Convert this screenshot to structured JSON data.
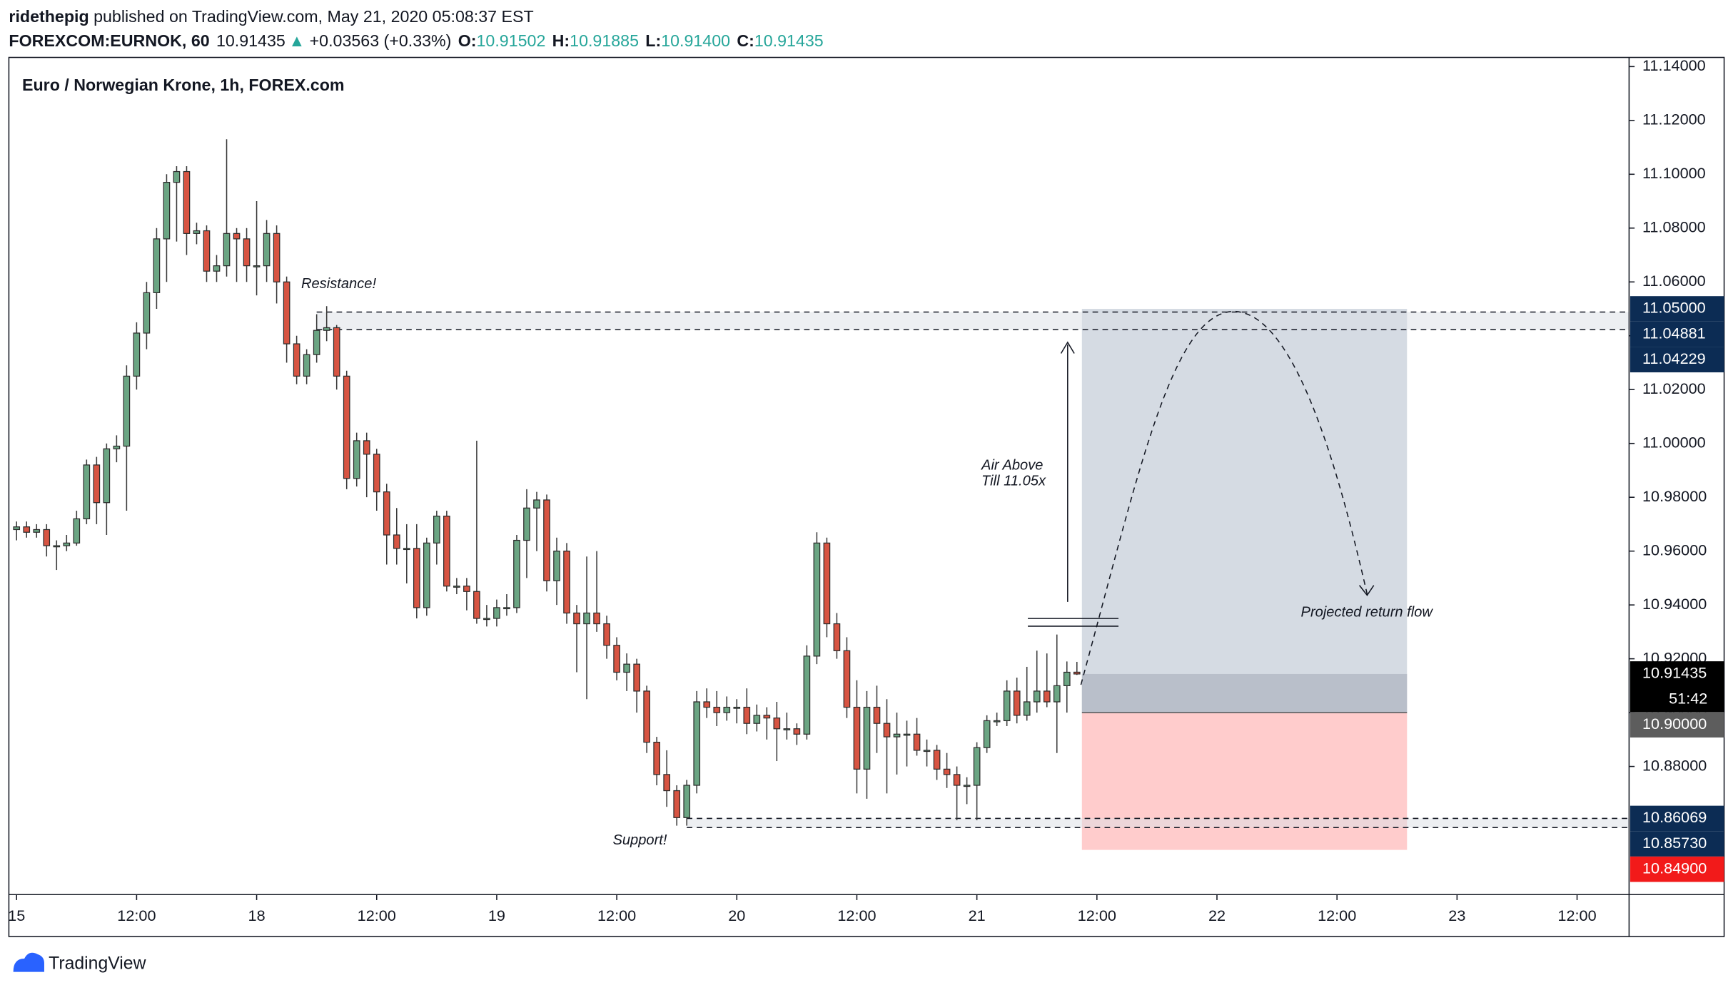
{
  "header": {
    "author": "ridethepig",
    "published": " published on TradingView.com, May 21, 2020 05:08:37 EST",
    "symbol": "FOREXCOM:EURNOK, 60",
    "last": "10.91435",
    "arrow": "▲",
    "change": "+0.03563 (+0.33%)",
    "o_label": "O:",
    "o": "10.91502",
    "h_label": "H:",
    "h": "10.91885",
    "l_label": "L:",
    "l": "10.91400",
    "c_label": "C:",
    "c": "10.91435"
  },
  "chart_data": {
    "type": "candlestick",
    "title": "Euro / Norwegian Krone, 1h, FOREX.com",
    "up_color": "#6ba583",
    "down_color": "#d75442",
    "grid": false,
    "candles": [
      [
        10.968,
        10.971,
        10.964,
        10.969
      ],
      [
        10.969,
        10.971,
        10.965,
        10.967
      ],
      [
        10.967,
        10.97,
        10.965,
        10.968
      ],
      [
        10.968,
        10.97,
        10.958,
        10.962
      ],
      [
        10.962,
        10.964,
        10.953,
        10.962
      ],
      [
        10.962,
        10.966,
        10.96,
        10.963
      ],
      [
        10.963,
        10.975,
        10.962,
        10.972
      ],
      [
        10.972,
        10.994,
        10.97,
        10.992
      ],
      [
        10.992,
        10.995,
        10.97,
        10.978
      ],
      [
        10.978,
        11.0,
        10.966,
        10.998
      ],
      [
        10.998,
        11.003,
        10.993,
        10.999
      ],
      [
        10.999,
        11.029,
        10.975,
        11.025
      ],
      [
        11.025,
        11.045,
        11.02,
        11.041
      ],
      [
        11.041,
        11.06,
        11.035,
        11.056
      ],
      [
        11.056,
        11.08,
        11.05,
        11.076
      ],
      [
        11.076,
        11.1,
        11.06,
        11.097
      ],
      [
        11.097,
        11.103,
        11.075,
        11.101
      ],
      [
        11.101,
        11.103,
        11.07,
        11.078
      ],
      [
        11.078,
        11.082,
        11.074,
        11.079
      ],
      [
        11.079,
        11.081,
        11.06,
        11.064
      ],
      [
        11.064,
        11.07,
        11.06,
        11.066
      ],
      [
        11.066,
        11.113,
        11.062,
        11.078
      ],
      [
        11.078,
        11.08,
        11.06,
        11.076
      ],
      [
        11.076,
        11.08,
        11.06,
        11.066
      ],
      [
        11.066,
        11.09,
        11.055,
        11.066
      ],
      [
        11.066,
        11.083,
        11.06,
        11.078
      ],
      [
        11.078,
        11.081,
        11.052,
        11.06
      ],
      [
        11.06,
        11.062,
        11.03,
        11.037
      ],
      [
        11.037,
        11.04,
        11.022,
        11.025
      ],
      [
        11.025,
        11.035,
        11.022,
        11.033
      ],
      [
        11.033,
        11.048,
        11.03,
        11.042
      ],
      [
        11.042,
        11.051,
        11.038,
        11.043
      ],
      [
        11.043,
        11.044,
        11.02,
        11.025
      ],
      [
        11.025,
        11.027,
        10.983,
        10.987
      ],
      [
        10.987,
        11.004,
        10.984,
        11.001
      ],
      [
        11.001,
        11.004,
        10.98,
        10.996
      ],
      [
        10.996,
        10.998,
        10.975,
        10.982
      ],
      [
        10.982,
        10.985,
        10.955,
        10.966
      ],
      [
        10.966,
        10.976,
        10.955,
        10.961
      ],
      [
        10.961,
        10.97,
        10.948,
        10.961
      ],
      [
        10.961,
        10.97,
        10.935,
        10.939
      ],
      [
        10.939,
        10.965,
        10.936,
        10.963
      ],
      [
        10.963,
        10.975,
        10.955,
        10.973
      ],
      [
        10.973,
        10.975,
        10.945,
        10.947
      ],
      [
        10.947,
        10.95,
        10.944,
        10.947
      ],
      [
        10.947,
        10.95,
        10.938,
        10.945
      ],
      [
        10.945,
        11.001,
        10.933,
        10.935
      ],
      [
        10.935,
        10.94,
        10.932,
        10.935
      ],
      [
        10.935,
        10.942,
        10.932,
        10.939
      ],
      [
        10.939,
        10.944,
        10.936,
        10.939
      ],
      [
        10.939,
        10.966,
        10.937,
        10.964
      ],
      [
        10.964,
        10.983,
        10.95,
        10.976
      ],
      [
        10.976,
        10.982,
        10.96,
        10.979
      ],
      [
        10.979,
        10.981,
        10.945,
        10.949
      ],
      [
        10.949,
        10.965,
        10.94,
        10.96
      ],
      [
        10.96,
        10.963,
        10.933,
        10.937
      ],
      [
        10.937,
        10.94,
        10.915,
        10.933
      ],
      [
        10.933,
        10.958,
        10.905,
        10.937
      ],
      [
        10.937,
        10.96,
        10.93,
        10.933
      ],
      [
        10.933,
        10.936,
        10.92,
        10.925
      ],
      [
        10.925,
        10.928,
        10.912,
        10.915
      ],
      [
        10.915,
        10.922,
        10.908,
        10.918
      ],
      [
        10.918,
        10.92,
        10.9,
        10.908
      ],
      [
        10.908,
        10.91,
        10.885,
        10.889
      ],
      [
        10.889,
        10.891,
        10.873,
        10.877
      ],
      [
        10.877,
        10.886,
        10.865,
        10.871
      ],
      [
        10.871,
        10.873,
        10.858,
        10.861
      ],
      [
        10.861,
        10.875,
        10.858,
        10.873
      ],
      [
        10.873,
        10.908,
        10.87,
        10.904
      ],
      [
        10.904,
        10.909,
        10.898,
        10.902
      ],
      [
        10.902,
        10.908,
        10.895,
        10.9
      ],
      [
        10.9,
        10.906,
        10.897,
        10.902
      ],
      [
        10.902,
        10.905,
        10.896,
        10.902
      ],
      [
        10.902,
        10.909,
        10.892,
        10.896
      ],
      [
        10.896,
        10.903,
        10.893,
        10.899
      ],
      [
        10.899,
        10.902,
        10.89,
        10.898
      ],
      [
        10.898,
        10.904,
        10.882,
        10.894
      ],
      [
        10.894,
        10.9,
        10.89,
        10.894
      ],
      [
        10.894,
        10.896,
        10.888,
        10.892
      ],
      [
        10.892,
        10.925,
        10.89,
        10.921
      ],
      [
        10.921,
        10.967,
        10.918,
        10.963
      ],
      [
        10.963,
        10.965,
        10.928,
        10.933
      ],
      [
        10.933,
        10.937,
        10.92,
        10.923
      ],
      [
        10.923,
        10.928,
        10.898,
        10.902
      ],
      [
        10.902,
        10.912,
        10.87,
        10.879
      ],
      [
        10.879,
        10.908,
        10.868,
        10.902
      ],
      [
        10.902,
        10.91,
        10.885,
        10.896
      ],
      [
        10.896,
        10.905,
        10.87,
        10.891
      ],
      [
        10.891,
        10.9,
        10.877,
        10.892
      ],
      [
        10.892,
        10.897,
        10.88,
        10.892
      ],
      [
        10.892,
        10.898,
        10.884,
        10.886
      ],
      [
        10.886,
        10.89,
        10.88,
        10.886
      ],
      [
        10.886,
        10.888,
        10.875,
        10.879
      ],
      [
        10.879,
        10.885,
        10.872,
        10.877
      ],
      [
        10.877,
        10.88,
        10.86,
        10.873
      ],
      [
        10.873,
        10.876,
        10.866,
        10.873
      ],
      [
        10.873,
        10.889,
        10.86,
        10.887
      ],
      [
        10.887,
        10.899,
        10.885,
        10.897
      ],
      [
        10.897,
        10.9,
        10.895,
        10.897
      ],
      [
        10.897,
        10.912,
        10.895,
        10.908
      ],
      [
        10.908,
        10.913,
        10.896,
        10.899
      ],
      [
        10.899,
        10.917,
        10.897,
        10.904
      ],
      [
        10.904,
        10.923,
        10.9,
        10.908
      ],
      [
        10.908,
        10.922,
        10.902,
        10.904
      ],
      [
        10.904,
        10.929,
        10.885,
        10.91
      ],
      [
        10.91,
        10.919,
        10.9,
        10.915
      ],
      [
        10.91502,
        10.91885,
        10.914,
        10.91435
      ]
    ],
    "xlim": [
      -0.77,
      161.2
    ],
    "xticks": [
      {
        "value": 0,
        "label": "15"
      },
      {
        "value": 12,
        "label": "12:00"
      },
      {
        "value": 24,
        "label": "18"
      },
      {
        "value": 36,
        "label": "12:00"
      },
      {
        "value": 48,
        "label": "19"
      },
      {
        "value": 60,
        "label": "12:00"
      },
      {
        "value": 72,
        "label": "20"
      },
      {
        "value": 84,
        "label": "12:00"
      },
      {
        "value": 96,
        "label": "21"
      },
      {
        "value": 108,
        "label": "12:00"
      },
      {
        "value": 120,
        "label": "22"
      },
      {
        "value": 132,
        "label": "12:00"
      },
      {
        "value": 144,
        "label": "23"
      },
      {
        "value": 156,
        "label": "12:00"
      }
    ],
    "ylim": [
      10.8324,
      11.1434
    ],
    "yticks": [
      {
        "value": 10.88,
        "label": "10.88000"
      },
      {
        "value": 10.9,
        "label": "10.90000"
      },
      {
        "value": 10.92,
        "label": "10.92000"
      },
      {
        "value": 10.94,
        "label": "10.94000"
      },
      {
        "value": 10.96,
        "label": "10.96000"
      },
      {
        "value": 10.98,
        "label": "10.98000"
      },
      {
        "value": 11.0,
        "label": "11.00000"
      },
      {
        "value": 11.02,
        "label": "11.02000"
      },
      {
        "value": 11.04,
        "label": "11.04000"
      },
      {
        "value": 11.06,
        "label": "11.06000"
      },
      {
        "value": 11.08,
        "label": "11.08000"
      },
      {
        "value": 11.1,
        "label": "11.10000"
      },
      {
        "value": 11.12,
        "label": "11.12000"
      },
      {
        "value": 11.14,
        "label": "11.14000"
      }
    ],
    "price_tags": [
      {
        "value": 11.05,
        "label": "11.05000",
        "color": "#0c2c54"
      },
      {
        "value": 11.04881,
        "label": "11.04881",
        "color": "#0c2c54"
      },
      {
        "value": 11.04229,
        "label": "11.04229",
        "color": "#0c2c54"
      },
      {
        "value": 10.91435,
        "label": "10.91435",
        "color": "#000000",
        "countdown": "51:42"
      },
      {
        "value": 10.9,
        "label": "10.90000",
        "color": "#5d5d5d"
      },
      {
        "value": 10.86069,
        "label": "10.86069",
        "color": "#0c2c54"
      },
      {
        "value": 10.8573,
        "label": "10.85730",
        "color": "#0c2c54"
      },
      {
        "value": 10.849,
        "label": "10.84900",
        "color": "#f21a1a"
      }
    ],
    "zones": [
      {
        "label": "Resistance!",
        "top": 11.04881,
        "bottom": 11.04229,
        "start": 30
      },
      {
        "label": "Support!",
        "top": 10.86069,
        "bottom": 10.8573,
        "start": 67
      }
    ],
    "position": {
      "entry": 10.9,
      "target": 11.05,
      "stop": 10.849,
      "last": 10.91435,
      "start": 106.5,
      "end": 139
    },
    "annotations": {
      "air": [
        "Air Above",
        "Till 11.05x"
      ],
      "projection": "Projected return flow"
    }
  },
  "footer": {
    "brand": "TradingView"
  }
}
